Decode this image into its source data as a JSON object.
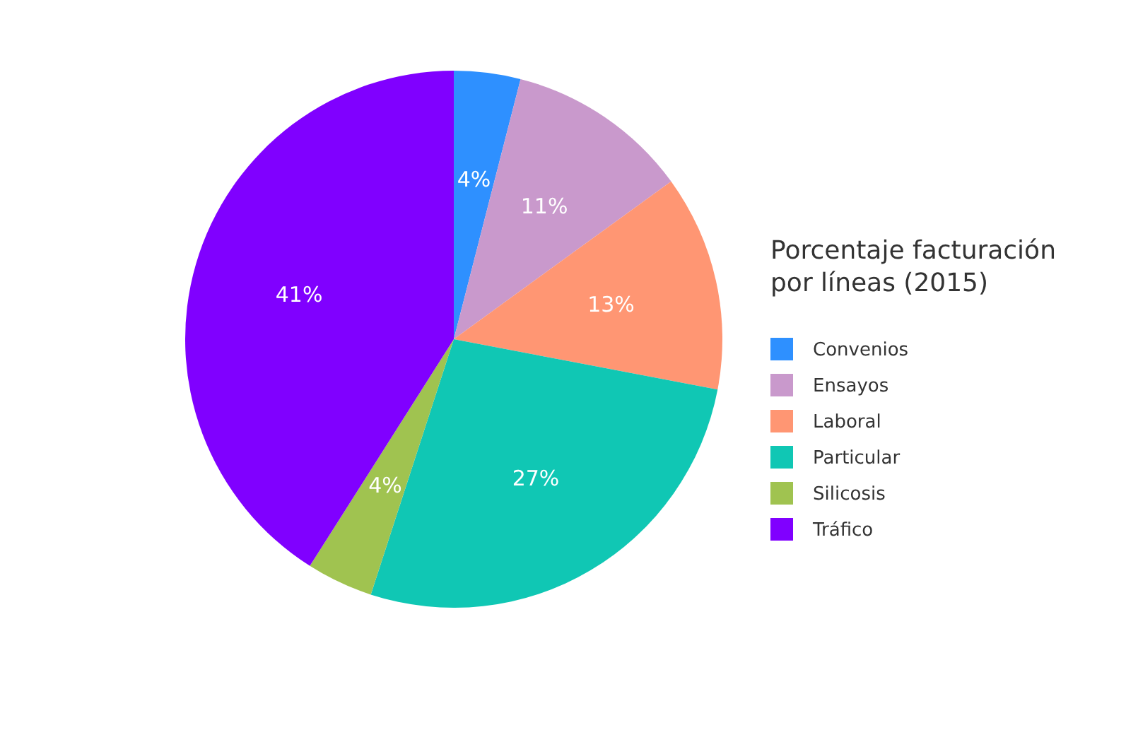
{
  "chart_data": {
    "type": "pie",
    "legend_title": "Porcentaje facturación por líneas (2015)",
    "categories": [
      "Convenios",
      "Ensayos",
      "Laboral",
      "Particular",
      "Silicosis",
      "Tráfico"
    ],
    "values": [
      4,
      11,
      13,
      27,
      4,
      41
    ],
    "colors": [
      "#2e90ff",
      "#c999cc",
      "#ff9673",
      "#10c7b4",
      "#a0c350",
      "#8000ff"
    ],
    "value_labels": [
      "4%",
      "11%",
      "13%",
      "27%",
      "4%",
      "41%"
    ],
    "legend": "right"
  }
}
